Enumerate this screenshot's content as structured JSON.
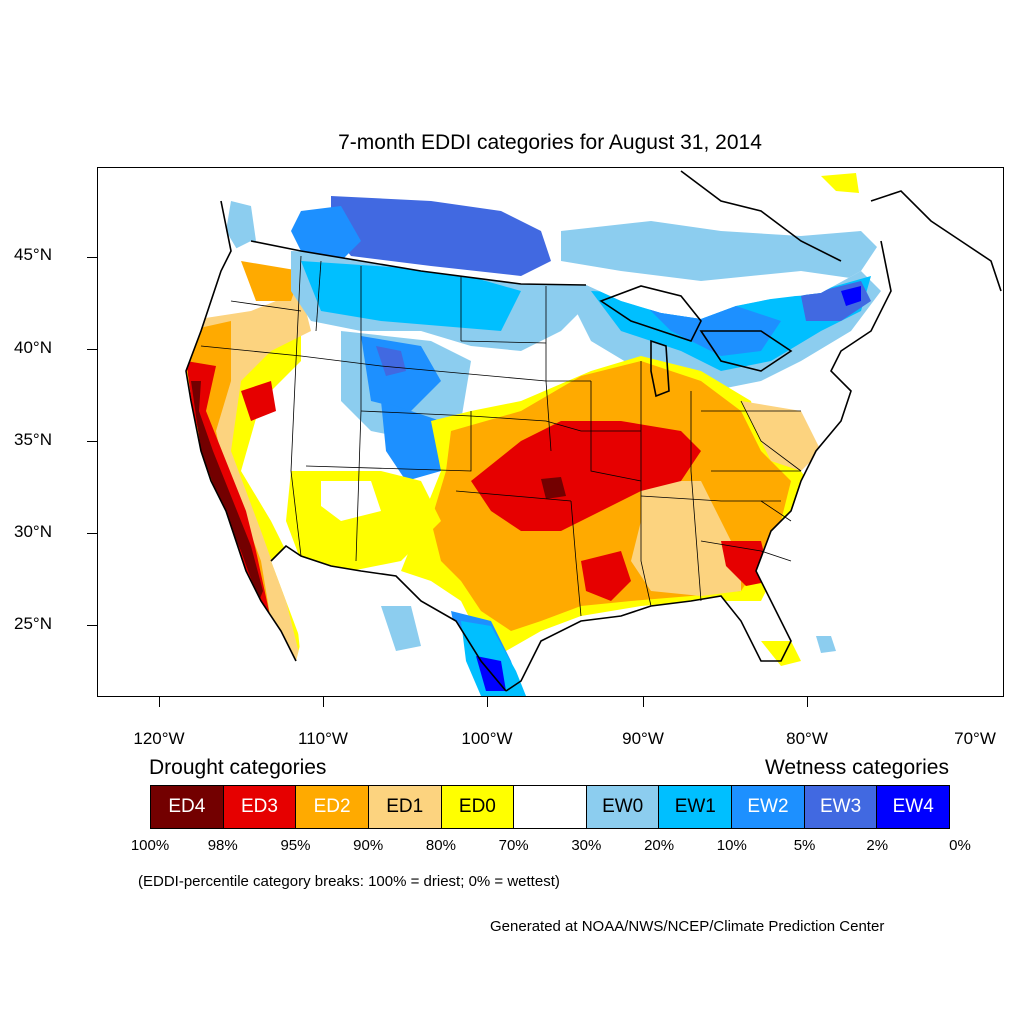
{
  "title": "7-month EDDI categories for August 31, 2014",
  "lat_labels": [
    "45°N",
    "40°N",
    "35°N",
    "30°N",
    "25°N"
  ],
  "lon_labels": [
    "120°W",
    "110°W",
    "100°W",
    "90°W",
    "80°W",
    "70°W"
  ],
  "legend": {
    "drought_heading": "Drought categories",
    "wetness_heading": "Wetness categories",
    "categories": [
      {
        "label": "ED4",
        "color": "#730000",
        "text_color": "#ffffff"
      },
      {
        "label": "ED3",
        "color": "#e60000",
        "text_color": "#ffffff"
      },
      {
        "label": "ED2",
        "color": "#ffaa00",
        "text_color": "#ffffff"
      },
      {
        "label": "ED1",
        "color": "#fcd37f",
        "text_color": "#000000"
      },
      {
        "label": "ED0",
        "color": "#ffff00",
        "text_color": "#000000"
      },
      {
        "label": "",
        "color": "#ffffff",
        "text_color": "#000000"
      },
      {
        "label": "EW0",
        "color": "#8ccdef",
        "text_color": "#000000"
      },
      {
        "label": "EW1",
        "color": "#00bfff",
        "text_color": "#000000"
      },
      {
        "label": "EW2",
        "color": "#1d90ff",
        "text_color": "#ffffff"
      },
      {
        "label": "EW3",
        "color": "#4169e1",
        "text_color": "#ffffff"
      },
      {
        "label": "EW4",
        "color": "#0000ff",
        "text_color": "#ffffff"
      }
    ],
    "percentiles": [
      "100%",
      "98%",
      "95%",
      "90%",
      "80%",
      "70%",
      "30%",
      "20%",
      "10%",
      "5%",
      "2%",
      "0%"
    ]
  },
  "note": "(EDDI-percentile category breaks: 100% = driest; 0% = wettest)",
  "credit": "Generated at NOAA/NWS/NCEP/Climate Prediction Center"
}
